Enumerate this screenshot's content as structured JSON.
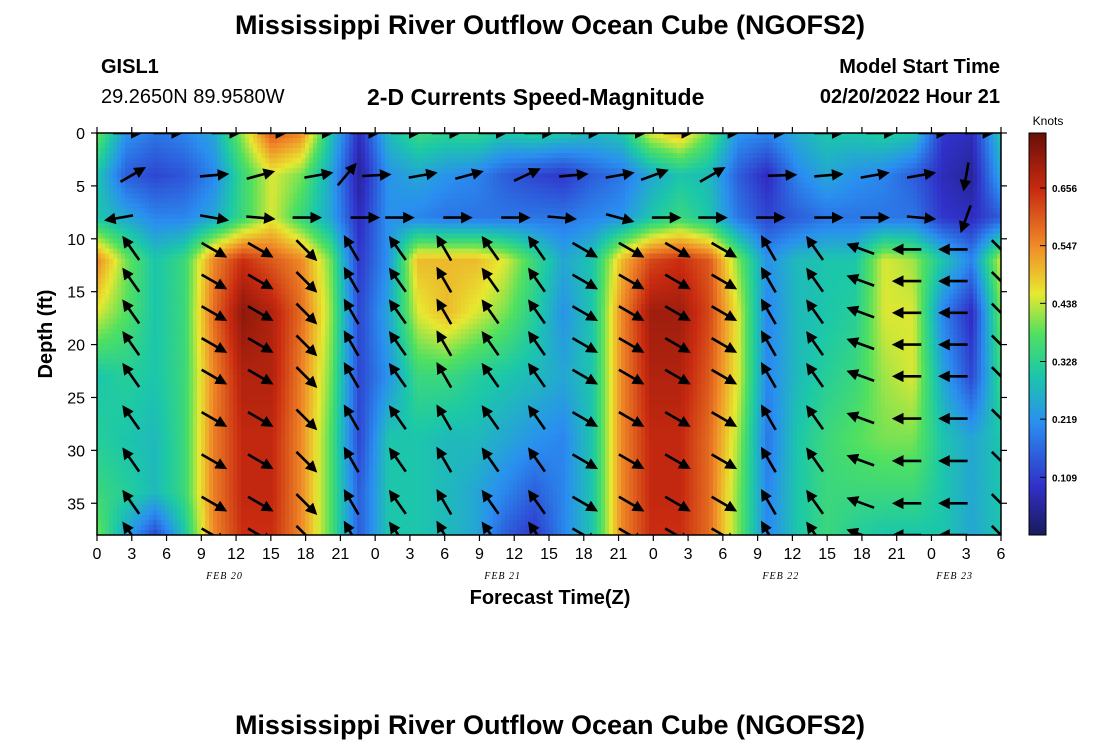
{
  "header": {
    "title": "Mississippi River Outflow Ocean Cube (NGOFS2)",
    "station_id": "GISL1",
    "station_coords": "29.2650N  89.9580W",
    "plot_subtitle": "2-D Currents Speed-Magnitude",
    "model_start_label": "Model Start Time",
    "model_start_value": "02/20/2022 Hour 21"
  },
  "footer": {
    "title": "Mississippi River Outflow Ocean Cube (NGOFS2)"
  },
  "chart_data": {
    "type": "heatmap",
    "variable": "2-D Currents Speed-Magnitude",
    "xlabel": "Forecast Time(Z)",
    "ylabel": "Depth (ft)",
    "colorbar_unit": "Knots",
    "colorbar_ticks": [
      "0.109",
      "0.219",
      "0.328",
      "0.438",
      "0.547",
      "0.656"
    ],
    "colorbar_range": [
      0.0,
      0.76
    ],
    "y_range": [
      0,
      38
    ],
    "y_ticks": [
      0,
      5,
      10,
      15,
      20,
      25,
      30,
      35
    ],
    "x_range_hours": [
      0,
      78
    ],
    "x_tick_labels": [
      "0",
      "3",
      "6",
      "9",
      "12",
      "15",
      "18",
      "21",
      "0",
      "3",
      "6",
      "9",
      "12",
      "15",
      "18",
      "21",
      "0",
      "3",
      "6",
      "9",
      "12",
      "15",
      "18",
      "21",
      "0",
      "3",
      "6"
    ],
    "date_labels": [
      {
        "text": "FEB 20",
        "hour": 11
      },
      {
        "text": "FEB 21",
        "hour": 35
      },
      {
        "text": "FEB 22",
        "hour": 59
      },
      {
        "text": "FEB 23",
        "hour": 74
      }
    ],
    "layers": [
      {
        "depth": 0,
        "speed": [
          0.4,
          0.22,
          0.18,
          0.2,
          0.25,
          0.42,
          0.6,
          0.55,
          0.3,
          0.08,
          0.28,
          0.35,
          0.33,
          0.34,
          0.3,
          0.32,
          0.3,
          0.28,
          0.3,
          0.45,
          0.5,
          0.38,
          0.22,
          0.2,
          0.26,
          0.3,
          0.3,
          0.32,
          0.3,
          0.1,
          0.08,
          0.3
        ]
      },
      {
        "depth": 4,
        "speed": [
          0.3,
          0.15,
          0.12,
          0.14,
          0.2,
          0.35,
          0.45,
          0.4,
          0.25,
          0.05,
          0.22,
          0.25,
          0.22,
          0.2,
          0.15,
          0.12,
          0.1,
          0.15,
          0.18,
          0.25,
          0.3,
          0.28,
          0.15,
          0.08,
          0.2,
          0.25,
          0.22,
          0.2,
          0.15,
          0.08,
          0.05,
          0.25
        ]
      },
      {
        "depth": 8,
        "speed": [
          0.3,
          0.25,
          0.2,
          0.2,
          0.25,
          0.35,
          0.45,
          0.35,
          0.25,
          0.08,
          0.22,
          0.2,
          0.18,
          0.18,
          0.18,
          0.18,
          0.18,
          0.2,
          0.22,
          0.3,
          0.35,
          0.3,
          0.18,
          0.12,
          0.15,
          0.18,
          0.18,
          0.18,
          0.18,
          0.1,
          0.08,
          0.15
        ]
      },
      {
        "depth": 12,
        "speed": [
          0.55,
          0.4,
          0.3,
          0.35,
          0.55,
          0.65,
          0.6,
          0.55,
          0.4,
          0.1,
          0.22,
          0.5,
          0.5,
          0.5,
          0.45,
          0.35,
          0.25,
          0.3,
          0.5,
          0.62,
          0.65,
          0.6,
          0.4,
          0.22,
          0.28,
          0.3,
          0.3,
          0.45,
          0.42,
          0.3,
          0.2,
          0.45
        ]
      },
      {
        "depth": 17,
        "speed": [
          0.45,
          0.38,
          0.3,
          0.35,
          0.58,
          0.72,
          0.68,
          0.58,
          0.42,
          0.12,
          0.25,
          0.45,
          0.5,
          0.45,
          0.4,
          0.32,
          0.22,
          0.3,
          0.55,
          0.7,
          0.7,
          0.62,
          0.45,
          0.2,
          0.28,
          0.3,
          0.32,
          0.45,
          0.45,
          0.2,
          0.08,
          0.4
        ]
      },
      {
        "depth": 23,
        "speed": [
          0.3,
          0.32,
          0.3,
          0.35,
          0.55,
          0.68,
          0.68,
          0.56,
          0.4,
          0.12,
          0.22,
          0.35,
          0.35,
          0.32,
          0.3,
          0.28,
          0.25,
          0.3,
          0.55,
          0.68,
          0.68,
          0.6,
          0.45,
          0.2,
          0.28,
          0.32,
          0.35,
          0.42,
          0.45,
          0.25,
          0.12,
          0.35
        ]
      },
      {
        "depth": 29,
        "speed": [
          0.32,
          0.3,
          0.28,
          0.35,
          0.56,
          0.66,
          0.66,
          0.55,
          0.38,
          0.12,
          0.3,
          0.3,
          0.28,
          0.28,
          0.25,
          0.22,
          0.2,
          0.3,
          0.55,
          0.66,
          0.66,
          0.58,
          0.42,
          0.18,
          0.3,
          0.35,
          0.38,
          0.4,
          0.4,
          0.3,
          0.25,
          0.3
        ]
      },
      {
        "depth": 34,
        "speed": [
          0.35,
          0.32,
          0.28,
          0.35,
          0.56,
          0.66,
          0.66,
          0.55,
          0.38,
          0.15,
          0.3,
          0.3,
          0.28,
          0.25,
          0.2,
          0.15,
          0.2,
          0.3,
          0.55,
          0.66,
          0.66,
          0.58,
          0.4,
          0.2,
          0.3,
          0.35,
          0.35,
          0.35,
          0.35,
          0.3,
          0.25,
          0.3
        ]
      },
      {
        "depth": 38,
        "speed": [
          0.4,
          0.25,
          0.12,
          0.3,
          0.55,
          0.65,
          0.65,
          0.55,
          0.38,
          0.15,
          0.3,
          0.3,
          0.28,
          0.25,
          0.15,
          0.1,
          0.2,
          0.3,
          0.55,
          0.65,
          0.65,
          0.58,
          0.4,
          0.2,
          0.3,
          0.35,
          0.32,
          0.3,
          0.3,
          0.3,
          0.25,
          0.3
        ]
      }
    ],
    "vectors": [
      {
        "x": [
          2.5,
          6,
          11,
          15,
          19,
          23,
          26.5,
          30,
          34,
          38,
          42,
          46,
          50,
          54,
          58,
          63,
          67.5,
          72,
          76
        ],
        "depths": [
          0
        ],
        "angle": [
          0,
          0,
          0,
          0,
          0,
          0,
          0,
          0,
          0,
          0,
          0,
          0,
          0,
          0,
          0,
          0,
          0,
          0,
          0
        ]
      },
      {
        "x": [
          3,
          10,
          14,
          19,
          21.5,
          24,
          28,
          32,
          37,
          41,
          45,
          48,
          53,
          59,
          63,
          67,
          71,
          75
        ],
        "depths": [
          4
        ],
        "angle": [
          -30,
          -5,
          -15,
          -10,
          -50,
          -3,
          -10,
          -15,
          -25,
          -5,
          -10,
          -20,
          -30,
          -2,
          -5,
          -10,
          -10,
          100
        ]
      },
      {
        "x": [
          2,
          10,
          14,
          18,
          23,
          26,
          31,
          36,
          40,
          45,
          49,
          53,
          58,
          63,
          67,
          71,
          75
        ],
        "depths": [
          8
        ],
        "angle": [
          170,
          10,
          5,
          0,
          0,
          0,
          0,
          0,
          5,
          15,
          0,
          0,
          0,
          0,
          0,
          5,
          110
        ]
      },
      {
        "x": [
          3,
          10,
          14,
          18,
          22,
          26,
          30,
          34,
          38,
          42,
          46,
          50,
          54,
          58,
          62,
          66,
          70,
          74,
          78
        ],
        "depths": [
          11,
          14,
          17,
          20,
          23,
          27,
          31,
          35,
          38
        ],
        "angle": [
          235,
          30,
          30,
          45,
          240,
          235,
          240,
          235,
          235,
          30,
          30,
          30,
          30,
          240,
          235,
          200,
          180,
          180,
          45
        ]
      }
    ]
  }
}
